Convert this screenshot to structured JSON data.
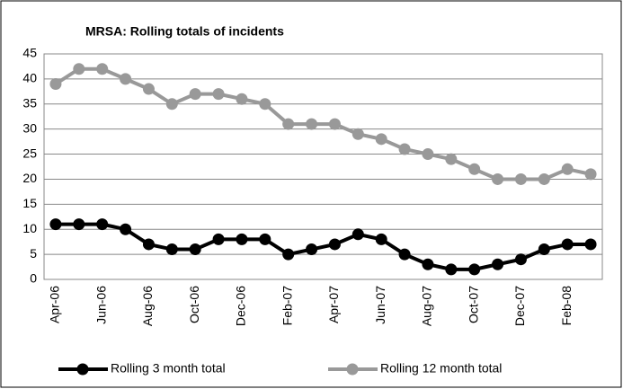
{
  "chart_data": {
    "type": "line",
    "title": "MRSA: Rolling totals of incidents",
    "categories": [
      "Apr-06",
      null,
      "Jun-06",
      null,
      "Aug-06",
      null,
      "Oct-06",
      null,
      "Dec-06",
      null,
      "Feb-07",
      null,
      "Apr-07",
      null,
      "Jun-07",
      null,
      "Aug-07",
      null,
      "Oct-07",
      null,
      "Dec-07",
      null,
      "Feb-08",
      null
    ],
    "series": [
      {
        "name": "Rolling 3 month total",
        "color": "#000000",
        "values": [
          11,
          11,
          11,
          10,
          7,
          6,
          6,
          8,
          8,
          8,
          5,
          6,
          7,
          9,
          8,
          5,
          3,
          2,
          2,
          3,
          4,
          6,
          7,
          7
        ]
      },
      {
        "name": "Rolling 12 month total",
        "color": "#999999",
        "values": [
          39,
          42,
          42,
          40,
          38,
          35,
          37,
          37,
          36,
          35,
          31,
          31,
          31,
          29,
          28,
          26,
          25,
          24,
          22,
          20,
          20,
          20,
          22,
          21
        ]
      }
    ],
    "ylim": [
      0,
      45
    ],
    "yticks": [
      0,
      5,
      10,
      15,
      20,
      25,
      30,
      35,
      40,
      45
    ],
    "grid": true,
    "legend": "bottom"
  }
}
